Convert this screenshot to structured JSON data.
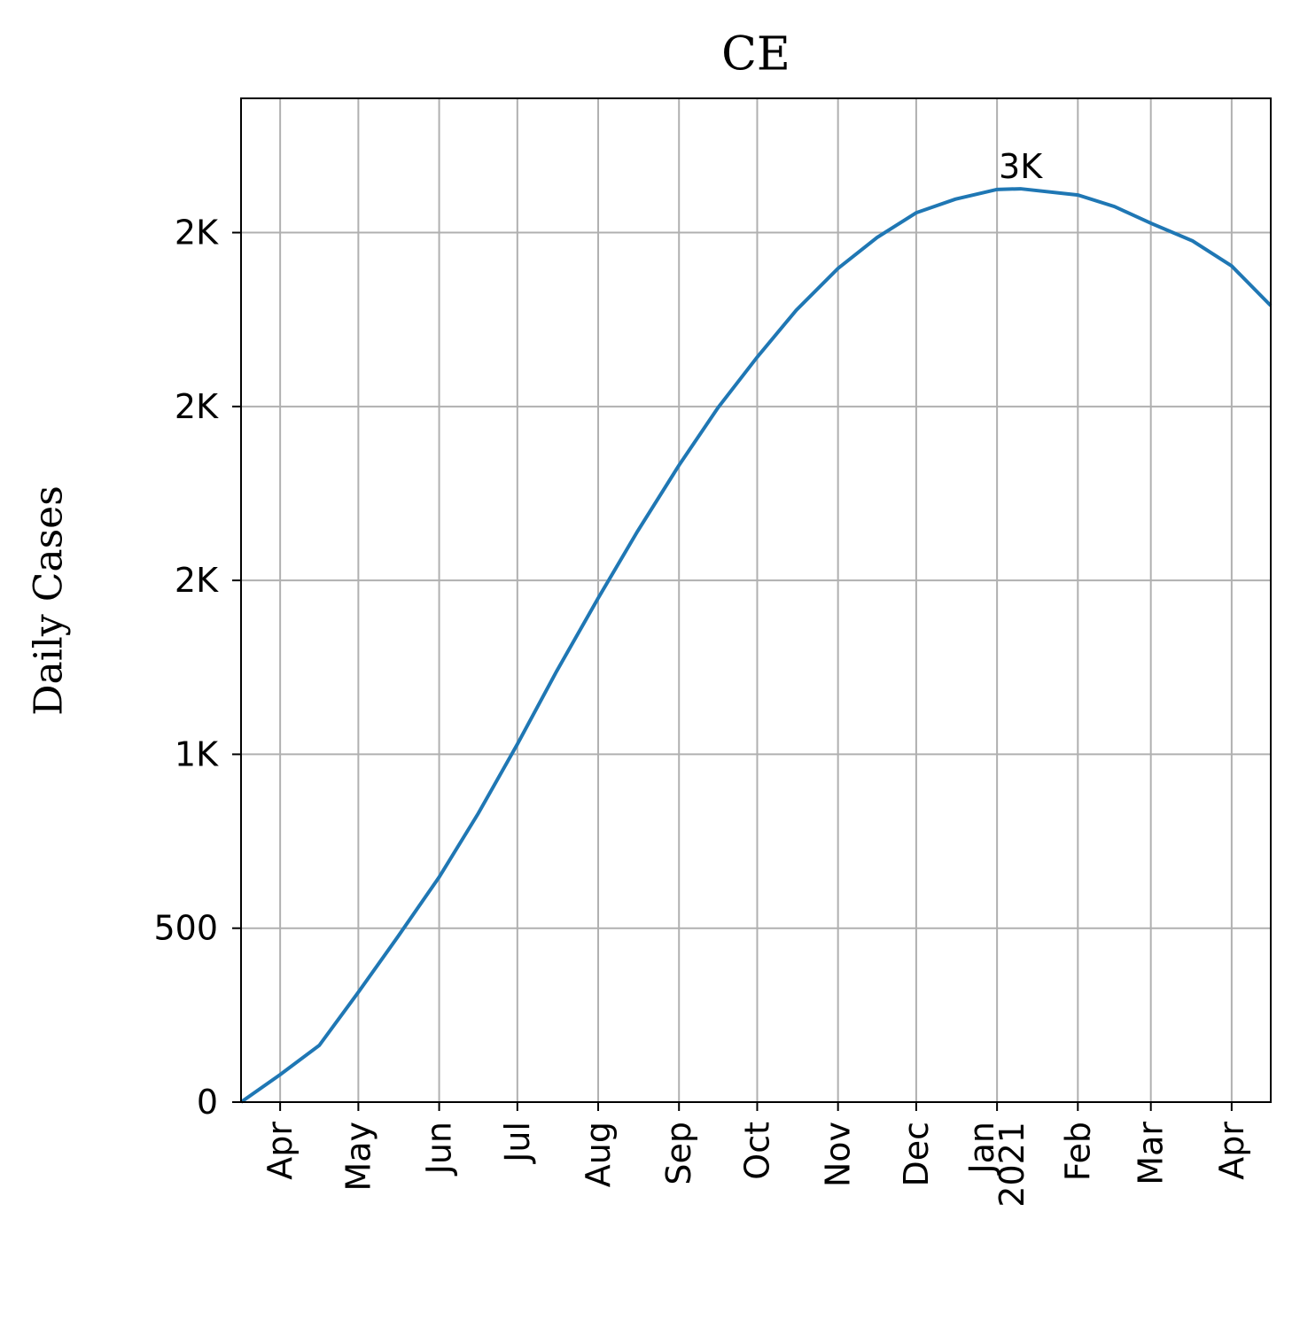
{
  "chart_data": {
    "type": "line",
    "title": "CE",
    "y_label": "Daily Cases",
    "x": [
      0,
      15,
      30,
      45,
      60,
      76,
      91,
      106,
      121,
      137,
      152,
      168,
      183,
      198,
      213,
      229,
      244,
      259,
      274,
      290,
      299,
      321,
      335,
      349,
      365,
      380,
      395
    ],
    "values": [
      0,
      79,
      163,
      316,
      474,
      647,
      830,
      1029,
      1238,
      1449,
      1640,
      1831,
      1997,
      2142,
      2277,
      2397,
      2486,
      2557,
      2596,
      2624,
      2626,
      2608,
      2575,
      2527,
      2476,
      2404,
      2290
    ],
    "color": "#1f77b4",
    "xlim": [
      0,
      395
    ],
    "xticks": [
      {
        "value": 15,
        "label": "Apr"
      },
      {
        "value": 45,
        "label": "May"
      },
      {
        "value": 76,
        "label": "Jun"
      },
      {
        "value": 106,
        "label": "Jul"
      },
      {
        "value": 137,
        "label": "Aug"
      },
      {
        "value": 168,
        "label": "Sep"
      },
      {
        "value": 198,
        "label": "Oct"
      },
      {
        "value": 229,
        "label": "Nov"
      },
      {
        "value": 259,
        "label": "Dec"
      },
      {
        "value": 290,
        "label": "Jan\n2021"
      },
      {
        "value": 321,
        "label": "Feb"
      },
      {
        "value": 349,
        "label": "Mar"
      },
      {
        "value": 380,
        "label": "Apr"
      }
    ],
    "ylim": [
      0,
      2886
    ],
    "yticks": [
      0,
      500,
      {
        "value": 1000,
        "label": "1K"
      },
      {
        "value": 1500,
        "label": "2K"
      },
      {
        "value": 2000,
        "label": "2K"
      },
      {
        "value": 2500,
        "label": "2K"
      }
    ],
    "grid": true,
    "annotations": [
      {
        "text": "3K",
        "x": 299,
        "y": 2626
      }
    ]
  }
}
